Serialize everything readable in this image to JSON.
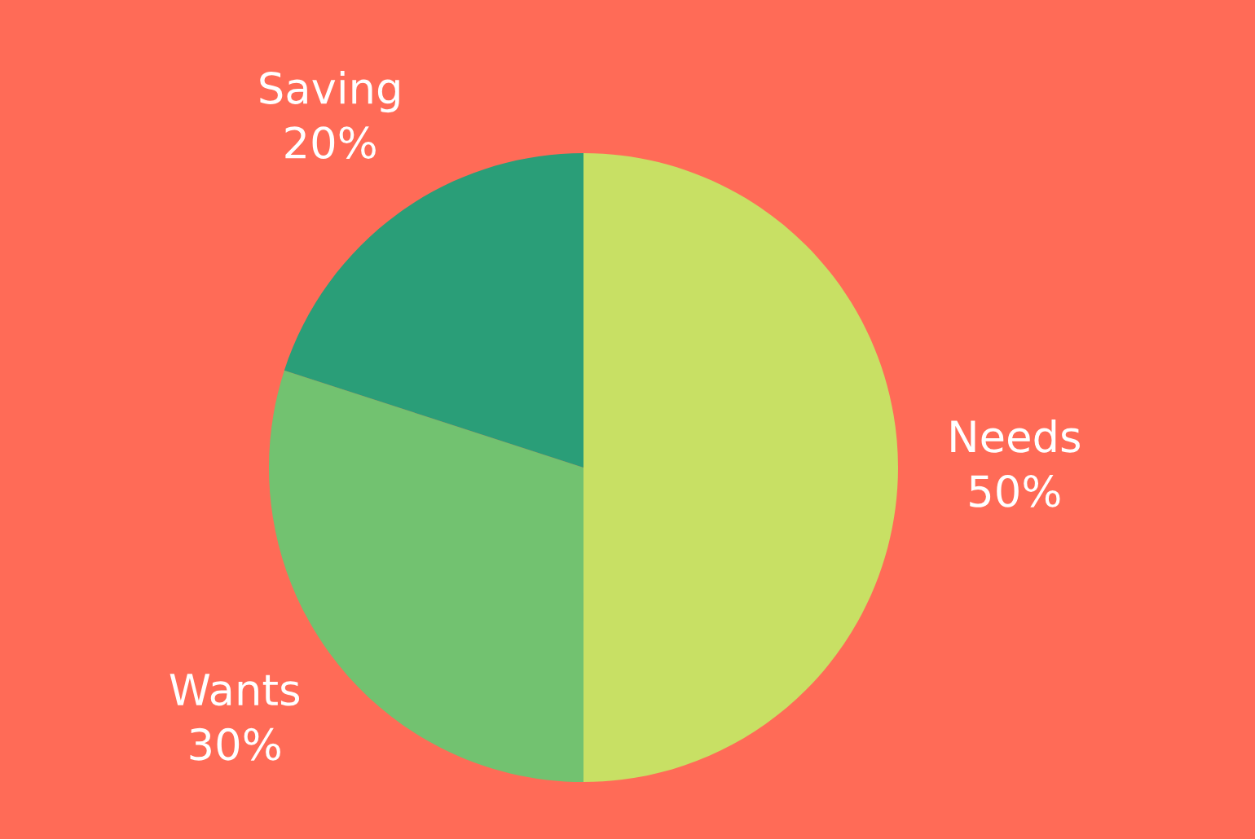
{
  "chart_data": {
    "type": "pie",
    "categories": [
      "Needs",
      "Wants",
      "Saving"
    ],
    "values": [
      50,
      30,
      20
    ],
    "value_labels": [
      "50%",
      "30%",
      "20%"
    ],
    "colors": [
      "#c8e064",
      "#72c270",
      "#2a9e78"
    ],
    "legend": false
  }
}
